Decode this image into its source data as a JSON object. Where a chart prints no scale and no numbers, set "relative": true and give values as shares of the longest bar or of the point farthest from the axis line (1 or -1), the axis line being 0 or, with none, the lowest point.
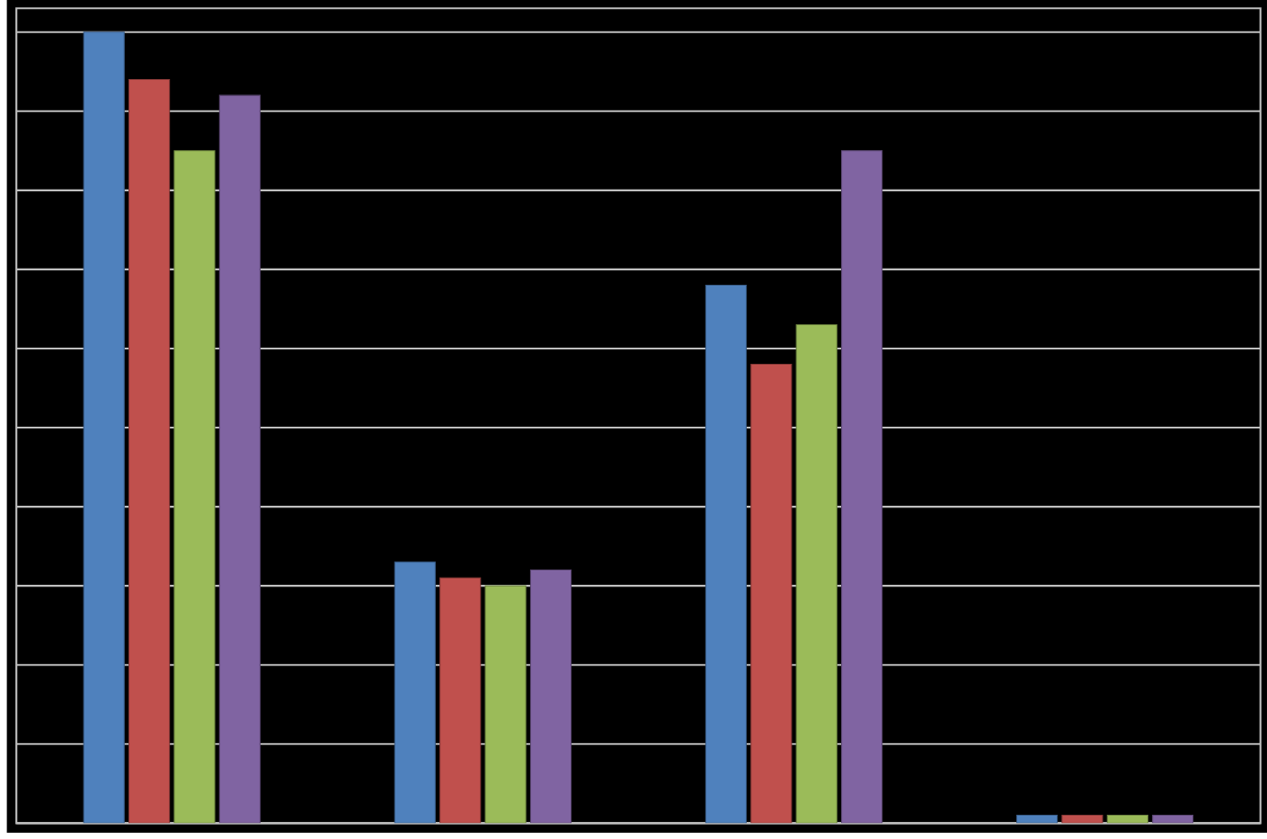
{
  "chart_data": {
    "type": "bar",
    "relative": true,
    "grid": "y",
    "categories": [
      null,
      null,
      null,
      null
    ],
    "series": [
      {
        "color": "#4f81bd",
        "values": [
          1.0,
          0.33,
          0.68,
          0.01
        ]
      },
      {
        "color": "#c0504d",
        "values": [
          0.94,
          0.31,
          0.58,
          0.01
        ]
      },
      {
        "color": "#9bbb59",
        "values": [
          0.85,
          0.3,
          0.63,
          0.01
        ]
      },
      {
        "color": "#8064a2",
        "values": [
          0.92,
          0.32,
          0.85,
          0.01
        ]
      }
    ]
  }
}
